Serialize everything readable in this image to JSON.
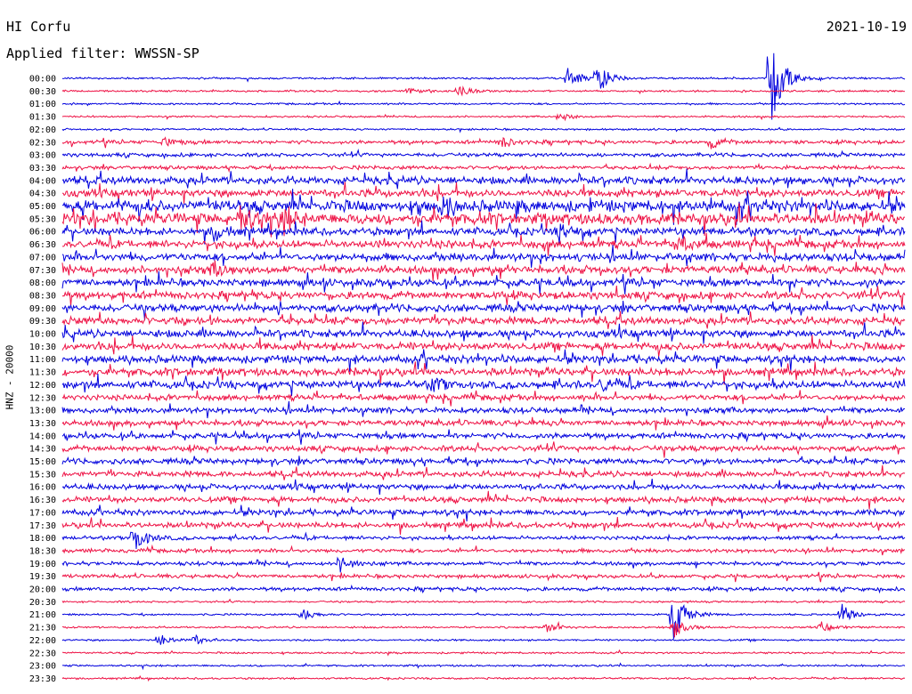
{
  "header": {
    "station": "HI Corfu",
    "date": "2021-10-19",
    "filter": "Applied filter: WWSSN-SP"
  },
  "chart_data": {
    "type": "line",
    "title": "HI Corfu",
    "subtitle": "Applied filter: WWSSN-SP",
    "date": "2021-10-19",
    "ylabel": "HNZ - 20000",
    "xlabel": "",
    "grid": false,
    "colors": {
      "even_rows": "#0000dd",
      "odd_rows": "#ee1144"
    },
    "rows": [
      "00:00",
      "00:30",
      "01:00",
      "01:30",
      "02:00",
      "02:30",
      "03:00",
      "03:30",
      "04:00",
      "04:30",
      "05:00",
      "05:30",
      "06:00",
      "06:30",
      "07:00",
      "07:30",
      "08:00",
      "08:30",
      "09:00",
      "09:30",
      "10:00",
      "10:30",
      "11:00",
      "11:30",
      "12:00",
      "12:30",
      "13:00",
      "13:30",
      "14:00",
      "14:30",
      "15:00",
      "15:30",
      "16:00",
      "16:30",
      "17:00",
      "17:30",
      "18:00",
      "18:30",
      "19:00",
      "19:30",
      "20:00",
      "20:30",
      "21:00",
      "21:30",
      "22:00",
      "22:30",
      "23:00",
      "23:30"
    ],
    "noise_level": [
      1,
      1,
      1,
      1,
      1,
      2,
      2,
      2,
      4,
      4,
      6,
      6,
      4,
      4,
      4,
      4,
      4,
      4,
      4,
      4,
      4,
      4,
      4,
      4,
      4,
      3,
      3,
      3,
      3,
      3,
      3,
      3,
      3,
      3,
      3,
      3,
      2,
      2,
      2,
      2,
      2,
      1,
      1,
      1,
      1,
      1,
      1,
      1
    ],
    "events": [
      {
        "row": 0,
        "x": 0.6,
        "amp": 12
      },
      {
        "row": 0,
        "x": 0.635,
        "amp": 20
      },
      {
        "row": 0,
        "x": 0.84,
        "amp": 60
      },
      {
        "row": 1,
        "x": 0.41,
        "amp": 4
      },
      {
        "row": 1,
        "x": 0.47,
        "amp": 6
      },
      {
        "row": 3,
        "x": 0.59,
        "amp": 5
      },
      {
        "row": 5,
        "x": 0.12,
        "amp": 5
      },
      {
        "row": 5,
        "x": 0.52,
        "amp": 6
      },
      {
        "row": 5,
        "x": 0.77,
        "amp": 6
      },
      {
        "row": 10,
        "x": 0.45,
        "amp": 8
      },
      {
        "row": 11,
        "x": 0.21,
        "amp": 14
      },
      {
        "row": 11,
        "x": 0.26,
        "amp": 18
      },
      {
        "row": 12,
        "x": 0.18,
        "amp": 10
      },
      {
        "row": 12,
        "x": 0.59,
        "amp": 9
      },
      {
        "row": 13,
        "x": 0.73,
        "amp": 10
      },
      {
        "row": 15,
        "x": 0.18,
        "amp": 9
      },
      {
        "row": 24,
        "x": 0.44,
        "amp": 8
      },
      {
        "row": 24,
        "x": 0.64,
        "amp": 8
      },
      {
        "row": 36,
        "x": 0.085,
        "amp": 16
      },
      {
        "row": 38,
        "x": 0.33,
        "amp": 10
      },
      {
        "row": 42,
        "x": 0.285,
        "amp": 7
      },
      {
        "row": 42,
        "x": 0.725,
        "amp": 30
      },
      {
        "row": 42,
        "x": 0.925,
        "amp": 12
      },
      {
        "row": 43,
        "x": 0.575,
        "amp": 6
      },
      {
        "row": 43,
        "x": 0.725,
        "amp": 12
      },
      {
        "row": 43,
        "x": 0.9,
        "amp": 6
      },
      {
        "row": 44,
        "x": 0.115,
        "amp": 8
      },
      {
        "row": 44,
        "x": 0.155,
        "amp": 6
      }
    ]
  }
}
